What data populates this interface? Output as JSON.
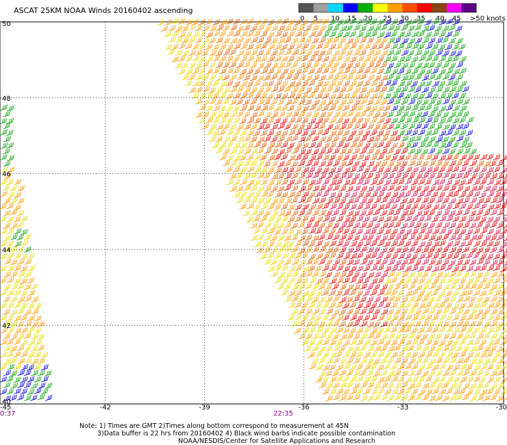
{
  "title": "ASCAT 25KM NOAA Winds 20160402 ascending",
  "legend": {
    "labels": [
      "0",
      "5",
      "10",
      "15",
      "20",
      "25",
      "30",
      "35",
      "40",
      "45",
      ">50 knots"
    ],
    "colors": [
      "#555555",
      "#a0a0a0",
      "#00d8ff",
      "#0000ff",
      "#00b000",
      "#ffff00",
      "#ffa000",
      "#ff5000",
      "#ff0000",
      "#8b4513",
      "#ff00ff",
      "#5a0080"
    ]
  },
  "map": {
    "lon_min": -45,
    "lon_max": -30,
    "lat_min": 40,
    "lat_max": 50,
    "lat_grid": [
      50,
      48,
      46,
      44,
      42,
      40
    ],
    "lon_grid": [
      -45,
      -42,
      -39,
      -36,
      -33,
      -30
    ],
    "lat_labels": [
      "50",
      "48",
      "46",
      "44",
      "42",
      "40"
    ],
    "lon_labels": [
      "-45",
      "-42",
      "-39",
      "-36",
      "-33",
      "-30"
    ],
    "times": [
      "0:37",
      "22:35"
    ],
    "time_color": "#800080",
    "grid_color": "#000000"
  },
  "wind_colors": {
    "green": "#00a000",
    "blue": "#0000cc",
    "yellow": "#e8d800",
    "orange": "#ff9a00",
    "dark_orange": "#e06000",
    "red": "#e00000",
    "crimson": "#d0104a"
  },
  "notes": [
    "Note: 1) Times are GMT 2)Times along bottom correspond to measurement at 45N",
    "3)Data buffer is 22 hrs from 20160402 4) Black wind barbs indicate possible contamination",
    "NOAA/NESDIS/Center for Satellite Applications and Research"
  ]
}
